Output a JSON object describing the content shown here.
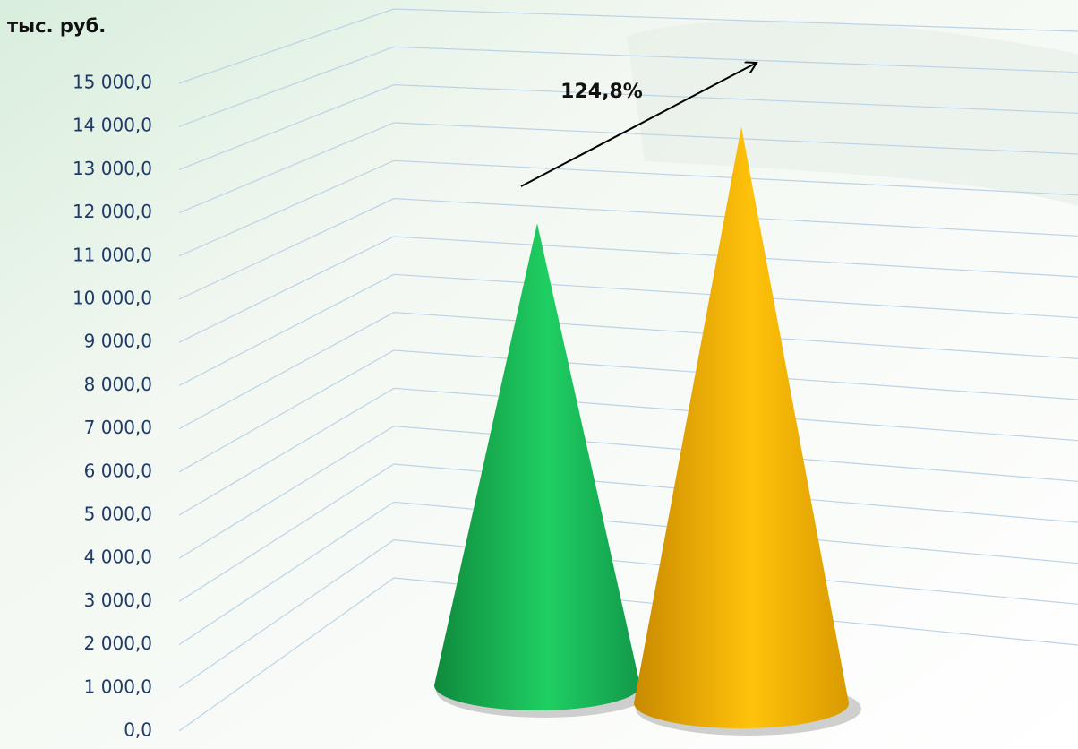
{
  "chart_data": {
    "type": "cone",
    "y_axis_label": "тыс. руб.",
    "annotation": "124,8%",
    "values": [
      10700,
      13350
    ],
    "colors": [
      "#1fcf63",
      "#ffc20a"
    ],
    "ylim": [
      0,
      15000
    ],
    "yticks": [
      {
        "value": 0,
        "label": "0,0"
      },
      {
        "value": 1000,
        "label": "1 000,0"
      },
      {
        "value": 2000,
        "label": "2 000,0"
      },
      {
        "value": 3000,
        "label": "3 000,0"
      },
      {
        "value": 4000,
        "label": "4 000,0"
      },
      {
        "value": 5000,
        "label": "5 000,0"
      },
      {
        "value": 6000,
        "label": "6 000,0"
      },
      {
        "value": 7000,
        "label": "7 000,0"
      },
      {
        "value": 8000,
        "label": "8 000,0"
      },
      {
        "value": 9000,
        "label": "9 000,0"
      },
      {
        "value": 10000,
        "label": "10 000,0"
      },
      {
        "value": 11000,
        "label": "11 000,0"
      },
      {
        "value": 12000,
        "label": "12 000,0"
      },
      {
        "value": 13000,
        "label": "13 000,0"
      },
      {
        "value": 14000,
        "label": "14 000,0"
      },
      {
        "value": 15000,
        "label": "15 000,0"
      }
    ],
    "grid": true
  }
}
